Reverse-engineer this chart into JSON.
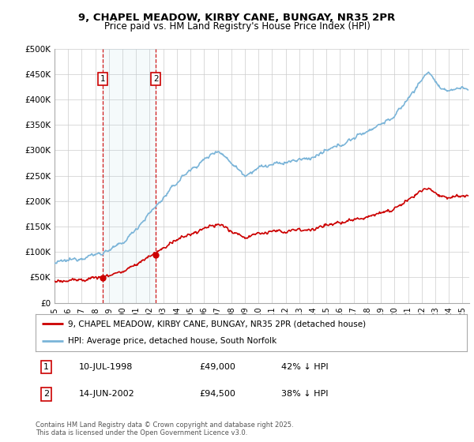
{
  "title_line1": "9, CHAPEL MEADOW, KIRBY CANE, BUNGAY, NR35 2PR",
  "title_line2": "Price paid vs. HM Land Registry's House Price Index (HPI)",
  "ylim": [
    0,
    500000
  ],
  "yticks": [
    0,
    50000,
    100000,
    150000,
    200000,
    250000,
    300000,
    350000,
    400000,
    450000,
    500000
  ],
  "ytick_labels": [
    "£0",
    "£50K",
    "£100K",
    "£150K",
    "£200K",
    "£250K",
    "£300K",
    "£350K",
    "£400K",
    "£450K",
    "£500K"
  ],
  "hpi_color": "#7ab4d8",
  "price_color": "#cc0000",
  "bg_color": "#ffffff",
  "grid_color": "#cccccc",
  "purchase1_date": 1998.53,
  "purchase1_price": 49000,
  "purchase2_date": 2002.45,
  "purchase2_price": 94500,
  "legend_entry1": "9, CHAPEL MEADOW, KIRBY CANE, BUNGAY, NR35 2PR (detached house)",
  "legend_entry2": "HPI: Average price, detached house, South Norfolk",
  "table_row1": [
    "1",
    "10-JUL-1998",
    "£49,000",
    "42% ↓ HPI"
  ],
  "table_row2": [
    "2",
    "14-JUN-2002",
    "£94,500",
    "38% ↓ HPI"
  ],
  "footnote": "Contains HM Land Registry data © Crown copyright and database right 2025.\nThis data is licensed under the Open Government Licence v3.0.",
  "xlim_start": 1995.0,
  "xlim_end": 2025.5
}
